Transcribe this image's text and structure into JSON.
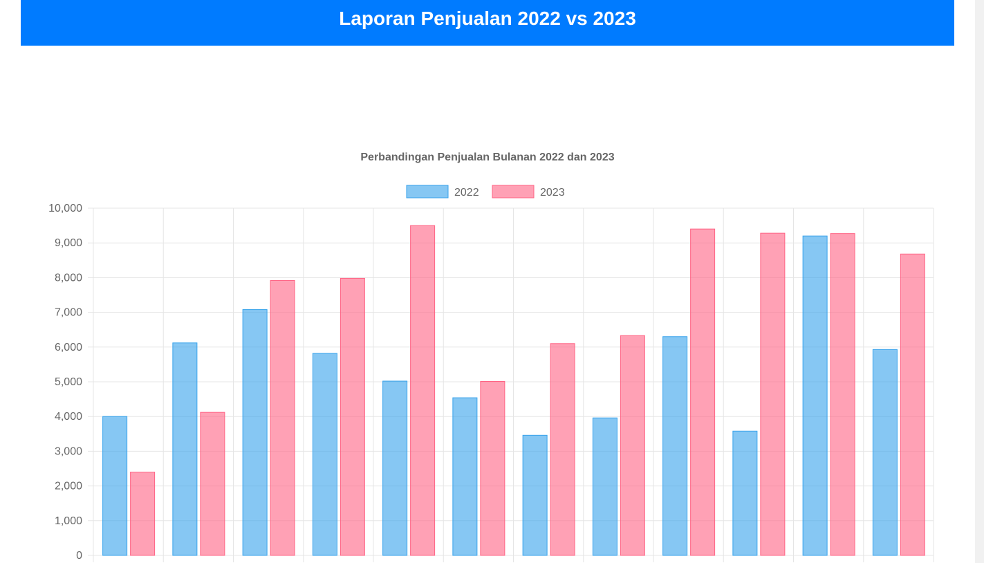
{
  "header": {
    "title": "Laporan Penjualan 2022 vs 2023"
  },
  "colors": {
    "header_bg": "#007bff",
    "series_2022_fill": "rgba(54,162,235,0.6)",
    "series_2022_border": "#36a2eb",
    "series_2023_fill": "rgba(255,99,132,0.6)",
    "series_2023_border": "#ff6384",
    "grid": "#e5e5e5",
    "text": "#666666"
  },
  "chart_data": {
    "type": "bar",
    "title": "Perbandingan Penjualan Bulanan 2022 dan 2023",
    "xlabel": "",
    "ylabel": "",
    "ylim": [
      0,
      10000
    ],
    "y_ticks": [
      0,
      1000,
      2000,
      3000,
      4000,
      5000,
      6000,
      7000,
      8000,
      9000,
      10000
    ],
    "y_tick_labels": [
      "0",
      "1,000",
      "2,000",
      "3,000",
      "4,000",
      "5,000",
      "6,000",
      "7,000",
      "8,000",
      "9,000",
      "10,000"
    ],
    "grid": true,
    "legend_position": "top",
    "series": [
      {
        "name": "2022",
        "values": [
          4000,
          6120,
          7080,
          5820,
          5020,
          4540,
          3460,
          3960,
          6300,
          3580,
          9200,
          5930
        ]
      },
      {
        "name": "2023",
        "values": [
          2400,
          4120,
          7920,
          7980,
          9500,
          5010,
          6100,
          6330,
          9400,
          9280,
          9270,
          8680
        ]
      }
    ]
  }
}
